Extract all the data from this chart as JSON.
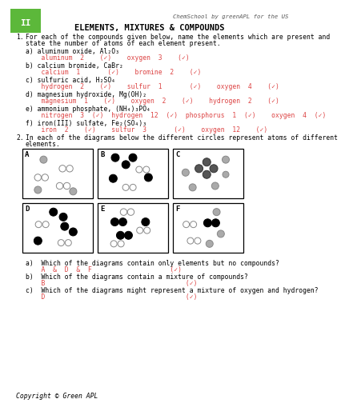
{
  "title": "ELEMENTS, MIXTURES & COMPOUNDS",
  "header_text": "ChemSchool by greenAPL for the US",
  "bg_color": "#ffffff",
  "title_color": "#000000",
  "answer_color": "#dd4444",
  "body_color": "#000000",
  "green_color": "#5cb83a",
  "copyright": "Copyright © Green APL",
  "q1_intro_line1": "For each of the compounds given below, name the elements which are present and",
  "q1_intro_line2": "state the number of atoms of each element present.",
  "compounds": [
    {
      "label": "a) aluminum oxide, Al₂O₃",
      "answers": "    aluminum  2    (✓)    oxygen  3    (✓)"
    },
    {
      "label": "b) calcium bromide, CaBr₂",
      "answers": "    calcium  1       (✓)    bromine  2    (✓)"
    },
    {
      "label": "c) sulfuric acid, H₂SO₄",
      "answers": "    hydrogen  2    (✓)    sulfur  1       (✓)    oxygen  4    (✓)"
    },
    {
      "label": "d) magnesium hydroxide, Mg(OH)₂",
      "answers": "    magnesium  1    (✓)    oxygen  2    (✓)    hydrogen  2    (✓)"
    },
    {
      "label": "e) ammonium phosphate, (NH₄)₃PO₄",
      "answers": "    nitrogen  3  (✓)  hydrogen  12  (✓)  phosphorus  1  (✓)    oxygen  4  (✓)"
    },
    {
      "label": "f) iron(III) sulfate, Fe₂(SO₄)₃",
      "answers": "    iron  2    (✓)    sulfur  3       (✓)    oxygen  12    (✓)"
    }
  ],
  "q2_intro_line1": "In each of the diagrams below the different circles represent atoms of different",
  "q2_intro_line2": "elements.",
  "q2a": "a)  Which of the diagrams contain only elements but no compounds?",
  "q2a_ans": "    A  &  D  &  F                    (✓)",
  "q2b": "b)  Which of the diagrams contain a mixture of compounds?",
  "q2b_ans": "    B                                    (✓)",
  "q2c": "c)  Which of the diagrams might represent a mixture of oxygen and hydrogen?",
  "q2c_ans": "    D                                    (✓)"
}
